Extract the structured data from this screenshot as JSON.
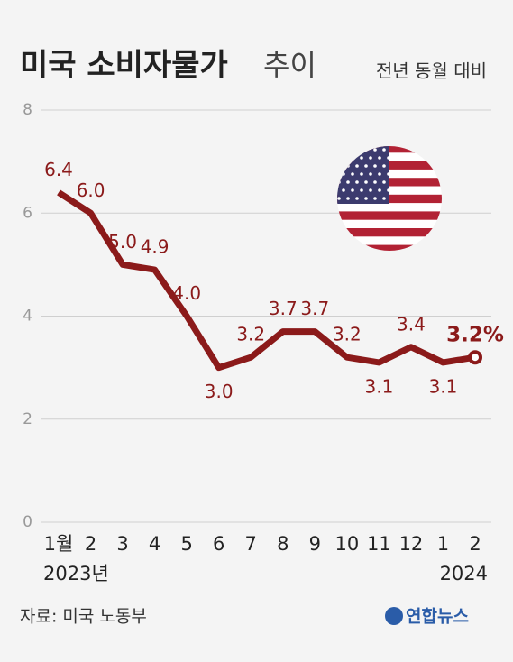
{
  "chart_data": {
    "type": "line",
    "title": {
      "main": "미국 소비자물가",
      "suffix": "추이"
    },
    "subtitle": "전년 동월 대비",
    "categories": [
      "1월",
      "2",
      "3",
      "4",
      "5",
      "6",
      "7",
      "8",
      "9",
      "10",
      "11",
      "12",
      "1",
      "2"
    ],
    "year_labels": [
      "2023년",
      "2024"
    ],
    "series": [
      {
        "color": "#8b1a1a",
        "values": [
          6.4,
          6.0,
          5.0,
          4.9,
          4.0,
          3.0,
          3.2,
          3.7,
          3.7,
          3.2,
          3.1,
          3.4,
          3.1,
          3.2
        ],
        "value_labels": [
          "6.4",
          "6.0",
          "5.0",
          "4.9",
          "4.0",
          "3.0",
          "3.2",
          "3.7",
          "3.7",
          "3.2",
          "3.1",
          "3.4",
          "3.1",
          "3.2%"
        ]
      }
    ],
    "ylim": [
      0,
      8
    ],
    "yticks": [
      0,
      2,
      4,
      6,
      8
    ],
    "grid": true,
    "source": "자료: 미국 노동부",
    "logo": "연합뉴스"
  }
}
